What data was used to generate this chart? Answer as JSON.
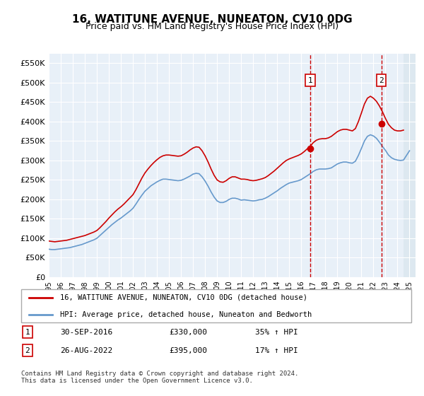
{
  "title": "16, WATITUNE AVENUE, NUNEATON, CV10 0DG",
  "subtitle": "Price paid vs. HM Land Registry's House Price Index (HPI)",
  "title_fontsize": 11,
  "subtitle_fontsize": 9,
  "ylabel_ticks": [
    "£0",
    "£50K",
    "£100K",
    "£150K",
    "£200K",
    "£250K",
    "£300K",
    "£350K",
    "£400K",
    "£450K",
    "£500K",
    "£550K"
  ],
  "ytick_values": [
    0,
    50000,
    100000,
    150000,
    200000,
    250000,
    300000,
    350000,
    400000,
    450000,
    500000,
    550000
  ],
  "ylim": [
    0,
    575000
  ],
  "xlim_start": 1995.0,
  "xlim_end": 2025.5,
  "red_color": "#cc0000",
  "blue_color": "#6699cc",
  "background_plot": "#e8f0f8",
  "background_future": "#dde8f0",
  "grid_color": "#ffffff",
  "point1_x": 2016.75,
  "point1_y": 330000,
  "point1_label": "1",
  "point1_date": "30-SEP-2016",
  "point1_price": "£330,000",
  "point1_hpi": "35% ↑ HPI",
  "point2_x": 2022.65,
  "point2_y": 395000,
  "point2_label": "2",
  "point2_date": "26-AUG-2022",
  "point2_price": "£395,000",
  "point2_hpi": "17% ↑ HPI",
  "legend_line1": "16, WATITUNE AVENUE, NUNEATON, CV10 0DG (detached house)",
  "legend_line2": "HPI: Average price, detached house, Nuneaton and Bedworth",
  "footer": "Contains HM Land Registry data © Crown copyright and database right 2024.\nThis data is licensed under the Open Government Licence v3.0.",
  "hpi_red_x": [
    1995.0,
    1995.25,
    1995.5,
    1995.75,
    1996.0,
    1996.25,
    1996.5,
    1996.75,
    1997.0,
    1997.25,
    1997.5,
    1997.75,
    1998.0,
    1998.25,
    1998.5,
    1998.75,
    1999.0,
    1999.25,
    1999.5,
    1999.75,
    2000.0,
    2000.25,
    2000.5,
    2000.75,
    2001.0,
    2001.25,
    2001.5,
    2001.75,
    2002.0,
    2002.25,
    2002.5,
    2002.75,
    2003.0,
    2003.25,
    2003.5,
    2003.75,
    2004.0,
    2004.25,
    2004.5,
    2004.75,
    2005.0,
    2005.25,
    2005.5,
    2005.75,
    2006.0,
    2006.25,
    2006.5,
    2006.75,
    2007.0,
    2007.25,
    2007.5,
    2007.75,
    2008.0,
    2008.25,
    2008.5,
    2008.75,
    2009.0,
    2009.25,
    2009.5,
    2009.75,
    2010.0,
    2010.25,
    2010.5,
    2010.75,
    2011.0,
    2011.25,
    2011.5,
    2011.75,
    2012.0,
    2012.25,
    2012.5,
    2012.75,
    2013.0,
    2013.25,
    2013.5,
    2013.75,
    2014.0,
    2014.25,
    2014.5,
    2014.75,
    2015.0,
    2015.25,
    2015.5,
    2015.75,
    2016.0,
    2016.25,
    2016.5,
    2016.75,
    2017.0,
    2017.25,
    2017.5,
    2017.75,
    2018.0,
    2018.25,
    2018.5,
    2018.75,
    2019.0,
    2019.25,
    2019.5,
    2019.75,
    2020.0,
    2020.25,
    2020.5,
    2020.75,
    2021.0,
    2021.25,
    2021.5,
    2021.75,
    2022.0,
    2022.25,
    2022.5,
    2022.75,
    2023.0,
    2023.25,
    2023.5,
    2023.75,
    2024.0,
    2024.25,
    2024.5
  ],
  "hpi_red_y": [
    93000,
    92000,
    91000,
    92000,
    93000,
    94000,
    95000,
    97000,
    99000,
    101000,
    103000,
    105000,
    107000,
    110000,
    113000,
    116000,
    120000,
    127000,
    135000,
    143000,
    152000,
    160000,
    168000,
    175000,
    181000,
    188000,
    196000,
    204000,
    212000,
    225000,
    240000,
    255000,
    268000,
    278000,
    287000,
    295000,
    302000,
    308000,
    312000,
    314000,
    314000,
    313000,
    312000,
    311000,
    312000,
    316000,
    321000,
    327000,
    332000,
    335000,
    334000,
    325000,
    312000,
    296000,
    278000,
    262000,
    250000,
    245000,
    244000,
    248000,
    254000,
    258000,
    258000,
    255000,
    252000,
    252000,
    251000,
    249000,
    248000,
    249000,
    251000,
    253000,
    256000,
    261000,
    267000,
    273000,
    280000,
    287000,
    294000,
    300000,
    304000,
    307000,
    310000,
    313000,
    317000,
    323000,
    330000,
    337000,
    346000,
    352000,
    355000,
    356000,
    356000,
    358000,
    362000,
    368000,
    374000,
    378000,
    380000,
    380000,
    378000,
    376000,
    382000,
    400000,
    422000,
    445000,
    460000,
    465000,
    460000,
    452000,
    440000,
    425000,
    408000,
    393000,
    384000,
    378000,
    376000,
    376000,
    378000
  ],
  "hpi_blue_x": [
    1995.0,
    1995.25,
    1995.5,
    1995.75,
    1996.0,
    1996.25,
    1996.5,
    1996.75,
    1997.0,
    1997.25,
    1997.5,
    1997.75,
    1998.0,
    1998.25,
    1998.5,
    1998.75,
    1999.0,
    1999.25,
    1999.5,
    1999.75,
    2000.0,
    2000.25,
    2000.5,
    2000.75,
    2001.0,
    2001.25,
    2001.5,
    2001.75,
    2002.0,
    2002.25,
    2002.5,
    2002.75,
    2003.0,
    2003.25,
    2003.5,
    2003.75,
    2004.0,
    2004.25,
    2004.5,
    2004.75,
    2005.0,
    2005.25,
    2005.5,
    2005.75,
    2006.0,
    2006.25,
    2006.5,
    2006.75,
    2007.0,
    2007.25,
    2007.5,
    2007.75,
    2008.0,
    2008.25,
    2008.5,
    2008.75,
    2009.0,
    2009.25,
    2009.5,
    2009.75,
    2010.0,
    2010.25,
    2010.5,
    2010.75,
    2011.0,
    2011.25,
    2011.5,
    2011.75,
    2012.0,
    2012.25,
    2012.5,
    2012.75,
    2013.0,
    2013.25,
    2013.5,
    2013.75,
    2014.0,
    2014.25,
    2014.5,
    2014.75,
    2015.0,
    2015.25,
    2015.5,
    2015.75,
    2016.0,
    2016.25,
    2016.5,
    2016.75,
    2017.0,
    2017.25,
    2017.5,
    2017.75,
    2018.0,
    2018.25,
    2018.5,
    2018.75,
    2019.0,
    2019.25,
    2019.5,
    2019.75,
    2020.0,
    2020.25,
    2020.5,
    2020.75,
    2021.0,
    2021.25,
    2021.5,
    2021.75,
    2022.0,
    2022.25,
    2022.5,
    2022.75,
    2023.0,
    2023.25,
    2023.5,
    2023.75,
    2024.0,
    2024.25,
    2024.5,
    2025.0
  ],
  "hpi_blue_y": [
    72000,
    71000,
    71000,
    72000,
    73000,
    74000,
    75000,
    76000,
    78000,
    80000,
    82000,
    84000,
    87000,
    90000,
    93000,
    96000,
    100000,
    107000,
    114000,
    121000,
    128000,
    135000,
    141000,
    147000,
    152000,
    158000,
    164000,
    170000,
    177000,
    188000,
    200000,
    211000,
    221000,
    228000,
    235000,
    240000,
    245000,
    249000,
    252000,
    252000,
    251000,
    250000,
    249000,
    248000,
    249000,
    252000,
    256000,
    260000,
    265000,
    267000,
    266000,
    258000,
    247000,
    234000,
    219000,
    206000,
    196000,
    192000,
    192000,
    195000,
    200000,
    203000,
    203000,
    201000,
    198000,
    199000,
    198000,
    197000,
    196000,
    197000,
    199000,
    200000,
    203000,
    207000,
    212000,
    217000,
    222000,
    228000,
    233000,
    238000,
    242000,
    244000,
    246000,
    248000,
    251000,
    256000,
    261000,
    266000,
    272000,
    276000,
    278000,
    278000,
    278000,
    279000,
    281000,
    286000,
    291000,
    294000,
    296000,
    296000,
    294000,
    293000,
    298000,
    313000,
    331000,
    350000,
    362000,
    366000,
    363000,
    357000,
    347000,
    336000,
    326000,
    314000,
    307000,
    303000,
    301000,
    300000,
    301000,
    325000
  ]
}
